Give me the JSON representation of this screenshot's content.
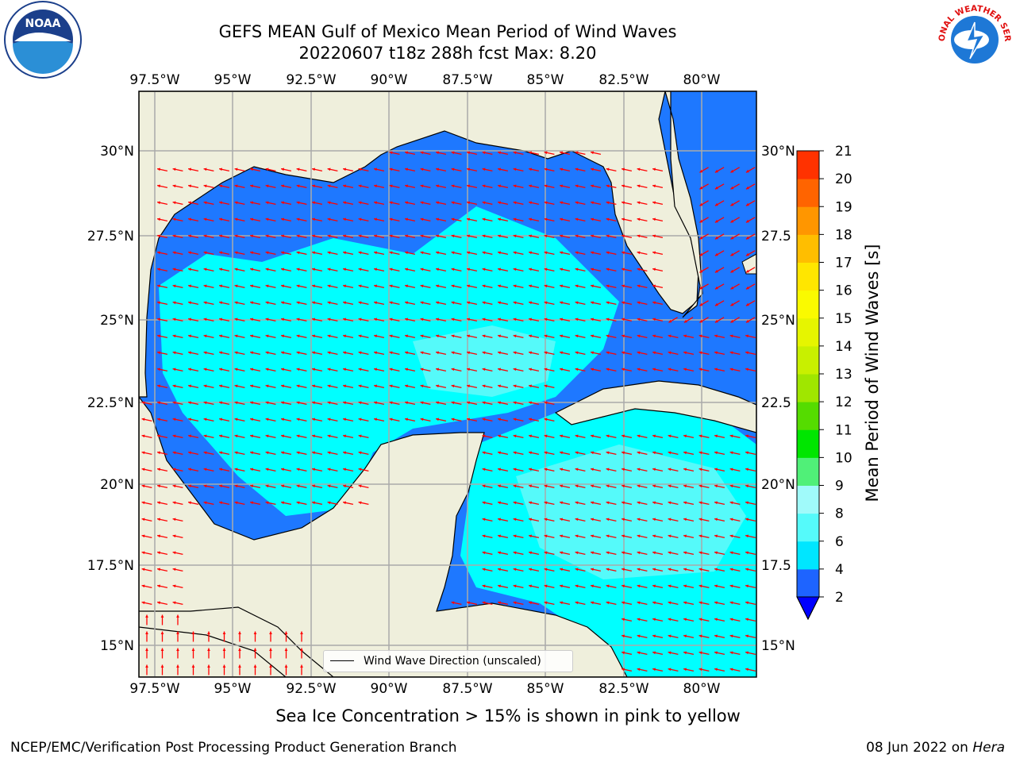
{
  "title_line1": "GEFS MEAN Gulf of Mexico Mean Period of Wind Waves",
  "title_line2": "20220607 t18z 288h fcst   Max: 8.20",
  "longitude_ticks": [
    "97.5°W",
    "95°W",
    "92.5°W",
    "90°W",
    "87.5°W",
    "85°W",
    "82.5°W",
    "80°W"
  ],
  "latitude_ticks_left": [
    "30°N",
    "27.5°N",
    "25°N",
    "22.5°N",
    "20°N",
    "17.5°N",
    "15°N"
  ],
  "latitude_ticks_right": [
    "30°N",
    "27.5",
    "25°N",
    "22.5",
    "20°N",
    "17.5",
    "15°N"
  ],
  "colorbar": {
    "label": "Mean Period of Wind Waves [s]",
    "ticks": [
      "2",
      "4",
      "6",
      "8",
      "9",
      "10",
      "11",
      "12",
      "13",
      "14",
      "15",
      "16",
      "17",
      "18",
      "19",
      "20",
      "21"
    ],
    "colors": [
      "#1e64ff",
      "#00e6ff",
      "#55fafa",
      "#a0fafa",
      "#50f078",
      "#00e600",
      "#55dc00",
      "#a0e600",
      "#c8f000",
      "#e6f500",
      "#fafa00",
      "#ffe600",
      "#ffbe00",
      "#ff9600",
      "#ff6400",
      "#ff3200",
      "#ff0000"
    ],
    "under_color": "#0000ff"
  },
  "map_colors": {
    "land": "#efefdc",
    "band_2_4": "#1e78ff",
    "band_4_6": "#00ffff",
    "band_6_8": "#55fafa",
    "arrow": "#ff0000"
  },
  "legend": {
    "label": "Wind Wave Direction (unscaled)"
  },
  "bottom_note": "Sea Ice Concentration > 15% is shown in pink to yellow",
  "credit_left": "NCEP/EMC/Verification Post Processing Product Generation Branch",
  "credit_date": "08 Jun 2022 on ",
  "credit_host": "Hera",
  "logos": {
    "noaa_text": "NOAA",
    "nws_text": "NATIONAL WEATHER SERVICE"
  }
}
